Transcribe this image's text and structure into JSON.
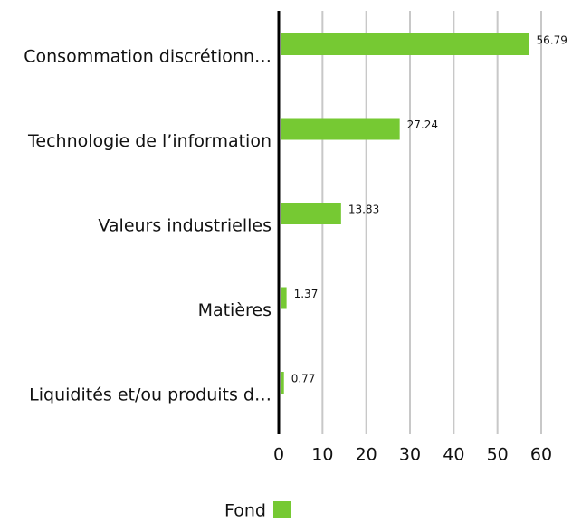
{
  "chart_data": {
    "type": "bar",
    "orientation": "horizontal",
    "categories": [
      "Consommation discrétionn…",
      "Technologie de l’information",
      "Valeurs industrielles",
      "Matières",
      "Liquidités et/ou produits d…"
    ],
    "series": [
      {
        "name": "Fond",
        "color": "#76c933",
        "values": [
          56.79,
          27.24,
          13.83,
          1.37,
          0.77
        ]
      }
    ],
    "xlim": [
      0,
      60
    ],
    "xticks": [
      0,
      10,
      20,
      30,
      40,
      50,
      60
    ],
    "grid": true
  }
}
